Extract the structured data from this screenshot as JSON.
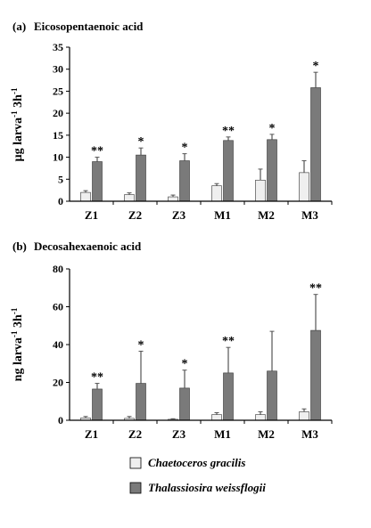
{
  "colors": {
    "series_light": "#efefef",
    "series_dark": "#7a7a7a",
    "axis": "#000000",
    "error_bar": "#555555"
  },
  "legend": [
    {
      "label": "Chaetoceros gracilis",
      "swatch": "light"
    },
    {
      "label": "Thalassiosira weissflogii",
      "swatch": "dark"
    }
  ],
  "chart_data": [
    {
      "type": "bar",
      "panel": "(a)",
      "title": "Eicosopentaenoic acid",
      "ylabel": "µg larva-1 3h-1",
      "yticks": [
        0,
        5,
        10,
        15,
        20,
        25,
        30,
        35
      ],
      "ylim": [
        0,
        35
      ],
      "categories": [
        "Z1",
        "Z2",
        "Z3",
        "M1",
        "M2",
        "M3"
      ],
      "series": [
        {
          "name": "Chaetoceros gracilis",
          "values": [
            2.0,
            1.5,
            1.0,
            3.5,
            4.8,
            6.5
          ],
          "errors": [
            0.4,
            0.4,
            0.4,
            0.5,
            2.5,
            2.7
          ]
        },
        {
          "name": "Thalassiosira weissflogii",
          "values": [
            9.0,
            10.5,
            9.2,
            13.8,
            14.0,
            25.8
          ],
          "errors": [
            1.0,
            1.6,
            1.6,
            0.8,
            1.2,
            3.5
          ]
        }
      ],
      "annotations": [
        "**",
        "*",
        "*",
        "**",
        "*",
        "*"
      ]
    },
    {
      "type": "bar",
      "panel": "(b)",
      "title": "Decosahexaenoic acid",
      "ylabel": "ng larva-1 3h-1",
      "yticks": [
        0,
        20,
        40,
        60,
        80
      ],
      "ylim": [
        0,
        80
      ],
      "categories": [
        "Z1",
        "Z2",
        "Z3",
        "M1",
        "M2",
        "M3"
      ],
      "series": [
        {
          "name": "Chaetoceros gracilis",
          "values": [
            1.2,
            1.0,
            0.5,
            3.0,
            3.0,
            4.5
          ],
          "errors": [
            0.8,
            1.0,
            0.3,
            1.0,
            1.5,
            1.5
          ]
        },
        {
          "name": "Thalassiosira weissflogii",
          "values": [
            16.5,
            19.5,
            17.0,
            25.0,
            26.0,
            47.5
          ],
          "errors": [
            3.0,
            17.0,
            9.5,
            13.5,
            21.0,
            19.0
          ]
        }
      ],
      "annotations": [
        "**",
        "*",
        "*",
        "**",
        "",
        "**"
      ]
    }
  ]
}
